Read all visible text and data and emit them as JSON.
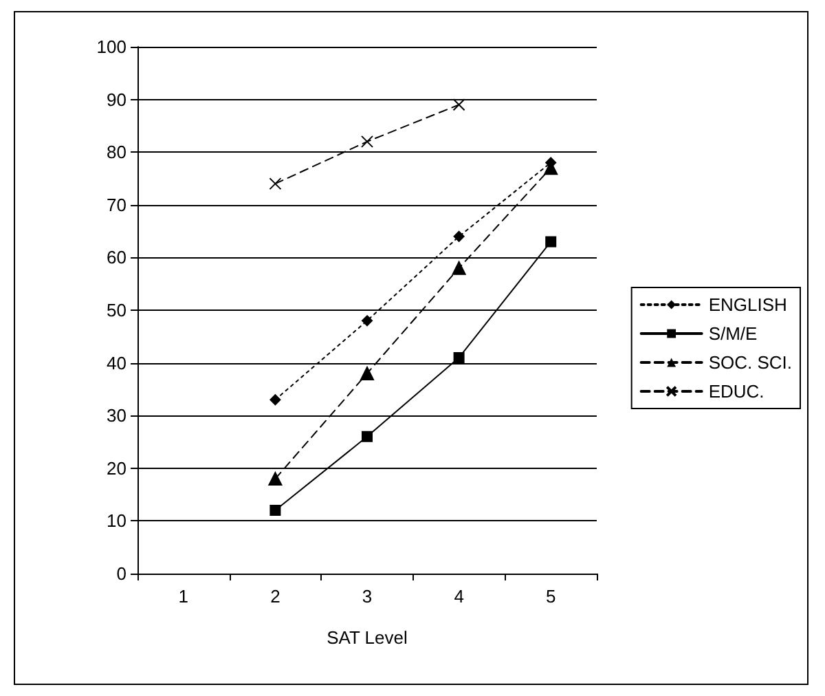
{
  "chart_data": {
    "type": "line",
    "xlabel": "SAT Level",
    "categories": [
      "1",
      "2",
      "3",
      "4",
      "5"
    ],
    "series": [
      {
        "name": "ENGLISH",
        "color": "#000000",
        "marker": "diamond",
        "line_style": "dotted",
        "values": [
          null,
          33,
          48,
          64,
          78
        ]
      },
      {
        "name": "S/M/E",
        "color": "#000000",
        "marker": "square",
        "line_style": "solid",
        "values": [
          null,
          12,
          26,
          41,
          63
        ]
      },
      {
        "name": "SOC. SCI.",
        "color": "#000000",
        "marker": "triangle",
        "line_style": "dashed",
        "values": [
          null,
          18,
          38,
          58,
          77
        ]
      },
      {
        "name": "EDUC.",
        "color": "#000000",
        "marker": "cross",
        "line_style": "dashed",
        "values": [
          null,
          74,
          82,
          89,
          null
        ]
      }
    ],
    "ylim": [
      0,
      100
    ],
    "yticks": [
      0,
      10,
      20,
      30,
      40,
      50,
      60,
      70,
      80,
      90,
      100
    ],
    "grid": "y",
    "legend": "right"
  }
}
